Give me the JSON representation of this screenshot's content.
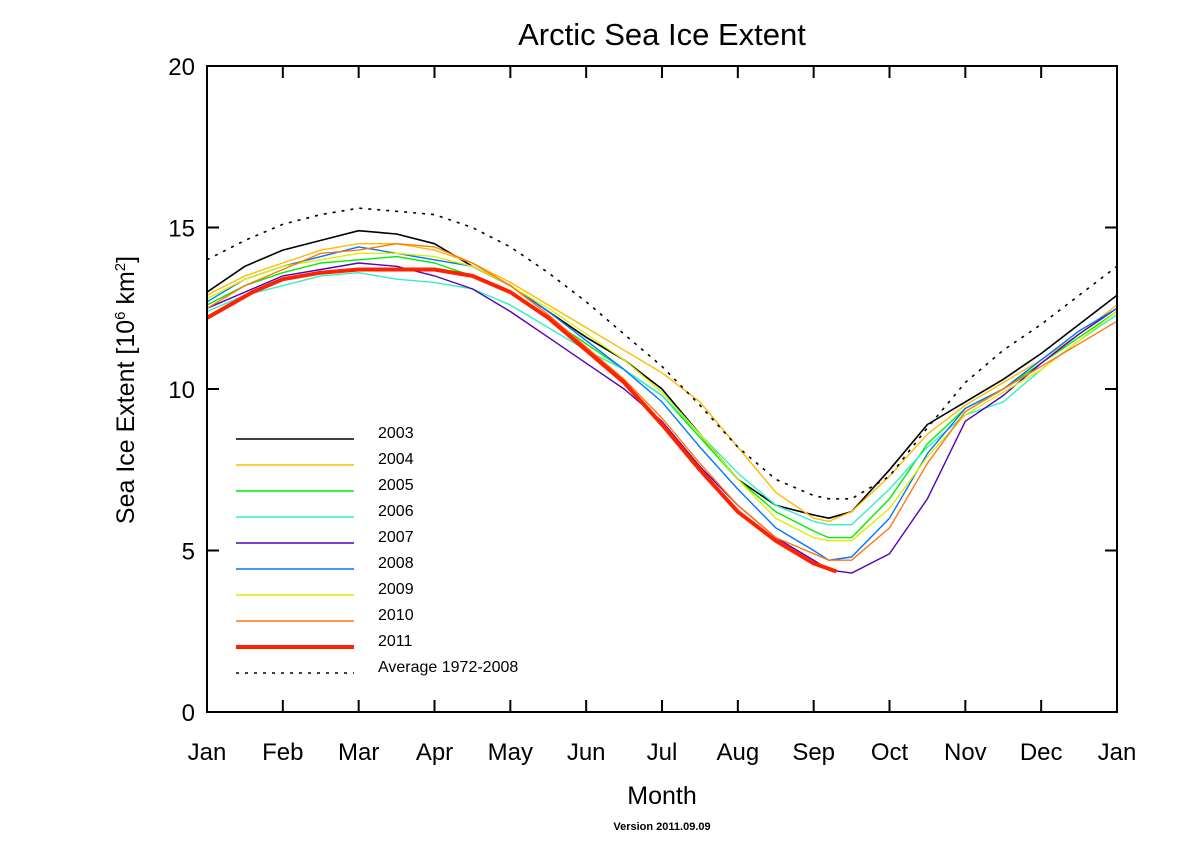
{
  "chart_data": {
    "type": "line",
    "title": "Arctic Sea Ice Extent",
    "xlabel": "Month",
    "ylabel_parts": [
      "Sea Ice Extent [10",
      "6",
      " km",
      "2",
      "]"
    ],
    "x_tick_labels": [
      "Jan",
      "Feb",
      "Mar",
      "Apr",
      "May",
      "Jun",
      "Jul",
      "Aug",
      "Sep",
      "Oct",
      "Nov",
      "Dec",
      "Jan"
    ],
    "ylim": [
      0,
      20
    ],
    "y_ticks": [
      0,
      5,
      10,
      15,
      20
    ],
    "x_units": "month (1 = start of Jan)",
    "xlim": [
      1,
      13
    ],
    "legend_position": "lower-left",
    "grid": false,
    "series": [
      {
        "name": "2003",
        "color": "#000000",
        "width": 1.6,
        "x": [
          1,
          1.5,
          2,
          2.5,
          3,
          3.5,
          4,
          4.5,
          5,
          5.5,
          6,
          6.5,
          7,
          7.5,
          8,
          8.5,
          9,
          9.2,
          9.5,
          10,
          10.5,
          11,
          11.5,
          12,
          12.5,
          13
        ],
        "y": [
          13.0,
          13.8,
          14.3,
          14.6,
          14.9,
          14.8,
          14.5,
          13.8,
          13.2,
          12.4,
          11.6,
          10.9,
          10.0,
          8.6,
          7.2,
          6.4,
          6.1,
          6.0,
          6.2,
          7.5,
          8.9,
          9.6,
          10.3,
          11.1,
          12.0,
          12.9
        ]
      },
      {
        "name": "2004",
        "color": "#ffbb00",
        "width": 1.4,
        "x": [
          1,
          1.5,
          2,
          2.5,
          3,
          3.5,
          4,
          4.5,
          5,
          5.5,
          6,
          6.5,
          7,
          7.5,
          8,
          8.5,
          9,
          9.2,
          9.5,
          10,
          10.5,
          11,
          11.5,
          12,
          12.5,
          13
        ],
        "y": [
          12.9,
          13.5,
          13.9,
          14.3,
          14.5,
          14.5,
          14.3,
          13.9,
          13.3,
          12.6,
          11.9,
          11.2,
          10.5,
          9.6,
          8.2,
          6.8,
          6.0,
          5.9,
          6.2,
          7.3,
          8.6,
          9.5,
          10.2,
          10.9,
          11.7,
          12.6
        ]
      },
      {
        "name": "2005",
        "color": "#00ee00",
        "width": 1.4,
        "x": [
          1,
          1.5,
          2,
          2.5,
          3,
          3.5,
          4,
          4.5,
          5,
          5.5,
          6,
          6.5,
          7,
          7.5,
          8,
          8.5,
          9,
          9.2,
          9.5,
          10,
          10.5,
          11,
          11.5,
          12,
          12.5,
          13
        ],
        "y": [
          12.6,
          13.2,
          13.6,
          13.9,
          14.0,
          14.1,
          13.9,
          13.5,
          13.0,
          12.2,
          11.4,
          10.6,
          9.8,
          8.5,
          7.2,
          6.2,
          5.6,
          5.4,
          5.4,
          6.6,
          8.3,
          9.4,
          10.0,
          10.8,
          11.6,
          12.4
        ]
      },
      {
        "name": "2006",
        "color": "#33eecc",
        "width": 1.4,
        "x": [
          1,
          1.5,
          2,
          2.5,
          3,
          3.5,
          4,
          4.5,
          5,
          5.5,
          6,
          6.5,
          7,
          7.5,
          8,
          8.5,
          9,
          9.2,
          9.5,
          10,
          10.5,
          11,
          11.5,
          12,
          12.5,
          13
        ],
        "y": [
          12.4,
          12.9,
          13.2,
          13.5,
          13.6,
          13.4,
          13.3,
          13.1,
          12.6,
          11.9,
          11.2,
          10.6,
          9.8,
          8.6,
          7.4,
          6.4,
          5.9,
          5.8,
          5.8,
          6.9,
          8.2,
          9.2,
          9.6,
          10.6,
          11.5,
          12.3
        ]
      },
      {
        "name": "2007",
        "color": "#5500bb",
        "width": 1.4,
        "x": [
          1,
          1.5,
          2,
          2.5,
          3,
          3.5,
          4,
          4.5,
          5,
          5.5,
          6,
          6.5,
          7,
          7.5,
          8,
          8.5,
          9,
          9.2,
          9.5,
          10,
          10.5,
          11,
          11.5,
          12,
          12.5,
          13
        ],
        "y": [
          12.5,
          13.0,
          13.5,
          13.7,
          13.9,
          13.8,
          13.5,
          13.1,
          12.4,
          11.6,
          10.8,
          10.0,
          9.0,
          7.6,
          6.4,
          5.4,
          4.7,
          4.4,
          4.3,
          4.9,
          6.6,
          9.0,
          9.8,
          10.8,
          11.7,
          12.5
        ]
      },
      {
        "name": "2008",
        "color": "#0077ff",
        "width": 1.4,
        "x": [
          1,
          1.5,
          2,
          2.5,
          3,
          3.5,
          4,
          4.5,
          5,
          5.5,
          6,
          6.5,
          7,
          7.5,
          8,
          8.5,
          9,
          9.2,
          9.5,
          10,
          10.5,
          11,
          11.5,
          12,
          12.5,
          13
        ],
        "y": [
          12.7,
          13.4,
          13.8,
          14.1,
          14.4,
          14.2,
          14.0,
          13.8,
          13.2,
          12.4,
          11.5,
          10.6,
          9.6,
          8.2,
          6.9,
          5.7,
          5.0,
          4.7,
          4.8,
          6.0,
          8.0,
          9.4,
          10.0,
          10.9,
          11.8,
          12.5
        ]
      },
      {
        "name": "2009",
        "color": "#ddee00",
        "width": 1.4,
        "x": [
          1,
          1.5,
          2,
          2.5,
          3,
          3.5,
          4,
          4.5,
          5,
          5.5,
          6,
          6.5,
          7,
          7.5,
          8,
          8.5,
          9,
          9.2,
          9.5,
          10,
          10.5,
          11,
          11.5,
          12,
          12.5,
          13
        ],
        "y": [
          12.8,
          13.4,
          13.8,
          14.0,
          14.2,
          14.2,
          14.1,
          13.8,
          13.2,
          12.5,
          11.7,
          10.9,
          9.9,
          8.6,
          7.2,
          6.0,
          5.4,
          5.3,
          5.3,
          6.3,
          7.9,
          9.2,
          9.9,
          10.6,
          11.5,
          12.4
        ]
      },
      {
        "name": "2010",
        "color": "#ff7711",
        "width": 1.4,
        "x": [
          1,
          1.5,
          2,
          2.5,
          3,
          3.5,
          4,
          4.5,
          5,
          5.5,
          6,
          6.5,
          7,
          7.5,
          8,
          8.5,
          9,
          9.2,
          9.5,
          10,
          10.5,
          11,
          11.5,
          12,
          12.5,
          13
        ],
        "y": [
          12.5,
          13.2,
          13.7,
          14.2,
          14.3,
          14.5,
          14.4,
          13.9,
          13.2,
          12.3,
          11.3,
          10.3,
          9.1,
          7.7,
          6.4,
          5.4,
          4.9,
          4.7,
          4.7,
          5.7,
          7.7,
          9.3,
          10.0,
          10.7,
          11.4,
          12.1
        ]
      },
      {
        "name": "2011",
        "color": "#ff2200",
        "width": 4,
        "x": [
          1,
          1.3,
          1.6,
          2,
          2.5,
          3,
          3.5,
          4,
          4.5,
          5,
          5.5,
          6,
          6.5,
          7,
          7.5,
          8,
          8.5,
          9,
          9.3
        ],
        "y": [
          12.2,
          12.6,
          13.0,
          13.4,
          13.6,
          13.7,
          13.7,
          13.7,
          13.5,
          13.0,
          12.2,
          11.2,
          10.2,
          8.9,
          7.5,
          6.2,
          5.3,
          4.6,
          4.35
        ]
      },
      {
        "name": "Average 1972-2008",
        "color": "#000000",
        "width": 1.6,
        "dash": "3,6",
        "x": [
          1,
          1.5,
          2,
          2.5,
          3,
          3.5,
          4,
          4.5,
          5,
          5.5,
          6,
          6.5,
          7,
          7.5,
          8,
          8.5,
          9,
          9.2,
          9.5,
          10,
          10.5,
          11,
          11.5,
          12,
          12.5,
          13
        ],
        "y": [
          14.0,
          14.6,
          15.1,
          15.4,
          15.6,
          15.5,
          15.4,
          15.0,
          14.4,
          13.6,
          12.7,
          11.7,
          10.7,
          9.5,
          8.2,
          7.2,
          6.7,
          6.6,
          6.6,
          7.3,
          8.8,
          10.2,
          11.2,
          12.0,
          12.9,
          13.8
        ]
      }
    ],
    "footnote": "Version 2011.09.09"
  }
}
